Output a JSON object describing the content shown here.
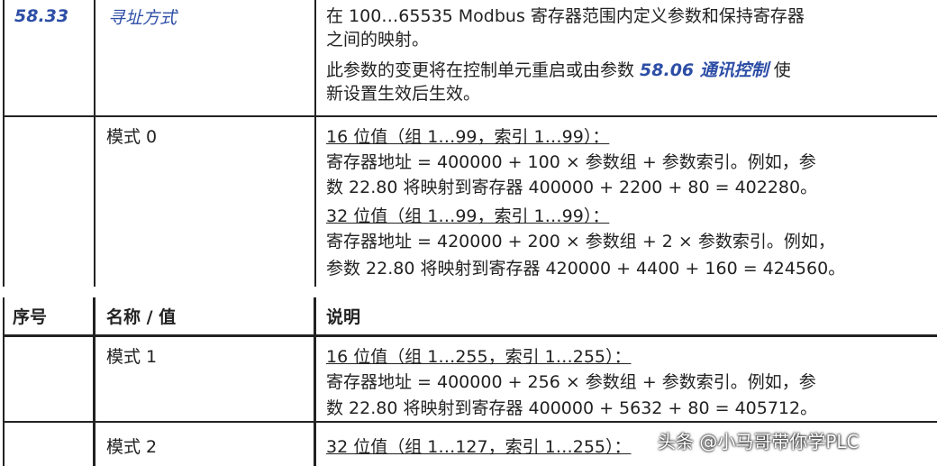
{
  "table_top": {
    "rows": [
      {
        "number": "58.33",
        "name": "寻址方式",
        "description": [
          [
            "在 100…65535 Modbus 寄存器范围内定义参数和保持寄存器"
          ],
          [
            "之间的映射。"
          ],
          [
            "此参数的变更将在控制单元重启或由参数 ",
            "58.06 通讯控制",
            " 使"
          ],
          [
            "新设置生效后生效。"
          ]
        ]
      },
      {
        "name": "模式 0",
        "description": [
          [
            "16 位值（组 1…99，索引 1…99）："
          ],
          [
            "寄存器地址 = 400000 + 100 × 参数组 + 参数索引。例如，参"
          ],
          [
            "数 22.80 将映射到寄存器 400000 + 2200 + 80 = 402280。"
          ],
          [
            "32 位值（组 1…99，索引 1…99）："
          ],
          [
            "寄存器地址 = 420000 + 200 × 参数组 + 2 × 参数索引。例如，"
          ],
          [
            "参数 22.80 将映射到寄存器 420000 + 4400 + 160 = 424560。"
          ]
        ]
      }
    ]
  },
  "table_bottom": {
    "header": [
      "序号",
      "名称 / 值",
      "说明"
    ],
    "rows": [
      {
        "name": "模式 1",
        "description": [
          [
            "16 位值（组 1…255，索引 1…255）："
          ],
          [
            "寄存器地址 = 400000 + 256 × 参数组 + 参数索引。例如，参"
          ],
          [
            "数 22.80 将映射到寄存器 400000 + 5632 + 80 = 405712。"
          ]
        ]
      },
      {
        "name": "模式 2",
        "description": [
          [
            "32 位值（组 1…127，索引 1…255）："
          ]
        ]
      }
    ]
  },
  "watermark": "头条 @小马哥带你学PLC"
}
